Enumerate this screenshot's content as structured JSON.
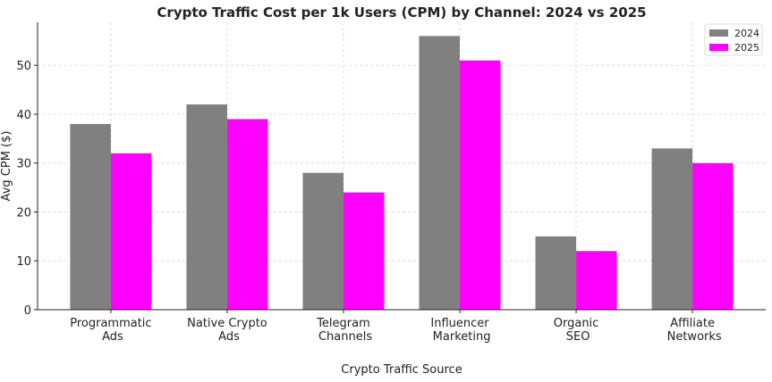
{
  "chart_data": {
    "type": "bar",
    "title": "Crypto Traffic Cost per 1k Users (CPM) by Channel: 2024 vs 2025",
    "xlabel": "Crypto Traffic Source",
    "ylabel": "Avg CPM ($)",
    "categories": [
      "Programmatic Ads",
      "Native Crypto Ads",
      "Telegram Channels",
      "Influencer Marketing",
      "Organic SEO",
      "Affiliate Networks"
    ],
    "series": [
      {
        "name": "2024",
        "color": "#808080",
        "values": [
          38,
          42,
          28,
          56,
          15,
          33
        ]
      },
      {
        "name": "2025",
        "color": "#ff00ff",
        "values": [
          32,
          39,
          24,
          51,
          12,
          30
        ]
      }
    ],
    "ylim": [
      0,
      58.8
    ],
    "yticks": [
      0,
      10,
      20,
      30,
      40,
      50
    ],
    "grid": true,
    "legend_position": "top-right"
  }
}
